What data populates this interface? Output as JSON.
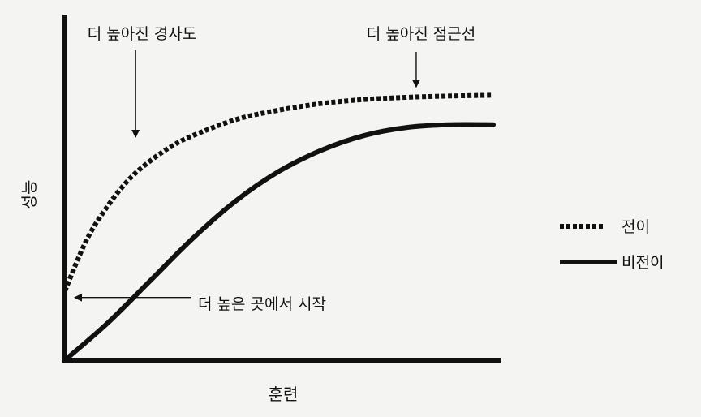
{
  "chart_data": {
    "type": "line",
    "title": "",
    "xlabel": "훈련",
    "ylabel": "성능",
    "xlim": [
      0,
      100
    ],
    "ylim": [
      0,
      100
    ],
    "grid": false,
    "legend_position": "right",
    "series": [
      {
        "name": "전이",
        "style": "dotted",
        "color": "#111111",
        "x": [
          0,
          5,
          10,
          15,
          20,
          25,
          30,
          40,
          50,
          60,
          70,
          80,
          90,
          100
        ],
        "y": [
          26,
          45,
          58,
          68,
          75,
          80.5,
          84.5,
          90.5,
          94,
          96.5,
          98,
          98.8,
          99.3,
          99.6
        ]
      },
      {
        "name": "비전이",
        "style": "solid",
        "color": "#111111",
        "x": [
          0,
          10,
          20,
          30,
          40,
          50,
          60,
          70,
          80,
          90,
          100
        ],
        "y": [
          0,
          14,
          30,
          46,
          60,
          71,
          79,
          84.5,
          87.5,
          88.5,
          88.5
        ]
      }
    ],
    "annotations": [
      {
        "id": "slope",
        "text": "더 높아진 경사도",
        "x": 16.5,
        "y": 82
      },
      {
        "id": "asymptote",
        "text": "더 높아진 점근선",
        "x": 82,
        "y": 99
      },
      {
        "id": "start",
        "text": "더 높은 곳에서 시작",
        "x": 0,
        "y": 26
      }
    ]
  }
}
